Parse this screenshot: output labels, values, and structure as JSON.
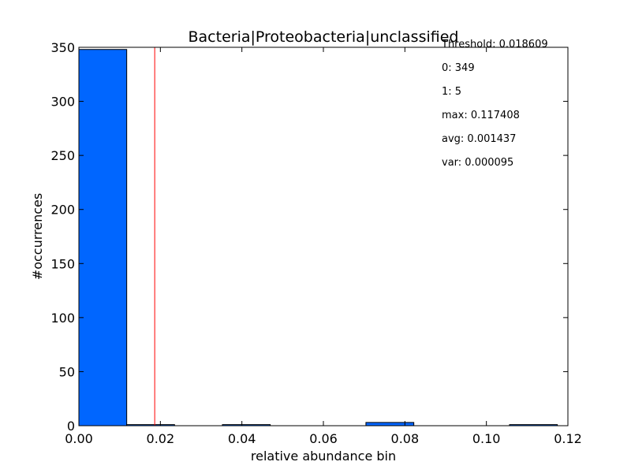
{
  "chart_data": {
    "type": "bar",
    "title": "Bacteria|Proteobacteria|unclassified",
    "xlabel": "relative abundance bin",
    "ylabel": "#occurrences",
    "xlim": [
      0.0,
      0.12
    ],
    "ylim": [
      0,
      350
    ],
    "x_ticks": [
      0.0,
      0.02,
      0.04,
      0.06,
      0.08,
      0.1,
      0.12
    ],
    "x_tick_labels": [
      "0.00",
      "0.02",
      "0.04",
      "0.06",
      "0.08",
      "0.10",
      "0.12"
    ],
    "y_ticks": [
      0,
      50,
      100,
      150,
      200,
      250,
      300,
      350
    ],
    "y_tick_labels": [
      "0",
      "50",
      "100",
      "150",
      "200",
      "250",
      "300",
      "350"
    ],
    "bins": [
      {
        "x0": 0.0,
        "x1": 0.01174,
        "count": 348
      },
      {
        "x0": 0.01174,
        "x1": 0.02348,
        "count": 1
      },
      {
        "x0": 0.02348,
        "x1": 0.03522,
        "count": 0
      },
      {
        "x0": 0.03522,
        "x1": 0.04696,
        "count": 1
      },
      {
        "x0": 0.04696,
        "x1": 0.0587,
        "count": 0
      },
      {
        "x0": 0.0587,
        "x1": 0.07044,
        "count": 0
      },
      {
        "x0": 0.07044,
        "x1": 0.08219,
        "count": 3
      },
      {
        "x0": 0.08219,
        "x1": 0.09393,
        "count": 0
      },
      {
        "x0": 0.09393,
        "x1": 0.10567,
        "count": 0
      },
      {
        "x0": 0.10567,
        "x1": 0.11741,
        "count": 1
      }
    ],
    "threshold": 0.018609,
    "bar_color": "#0066ff",
    "threshold_color": "#ff0000",
    "stats": [
      "Threshold: 0.018609",
      "0: 349",
      "1: 5",
      "max: 0.117408",
      "avg: 0.001437",
      "var: 0.000095"
    ]
  }
}
